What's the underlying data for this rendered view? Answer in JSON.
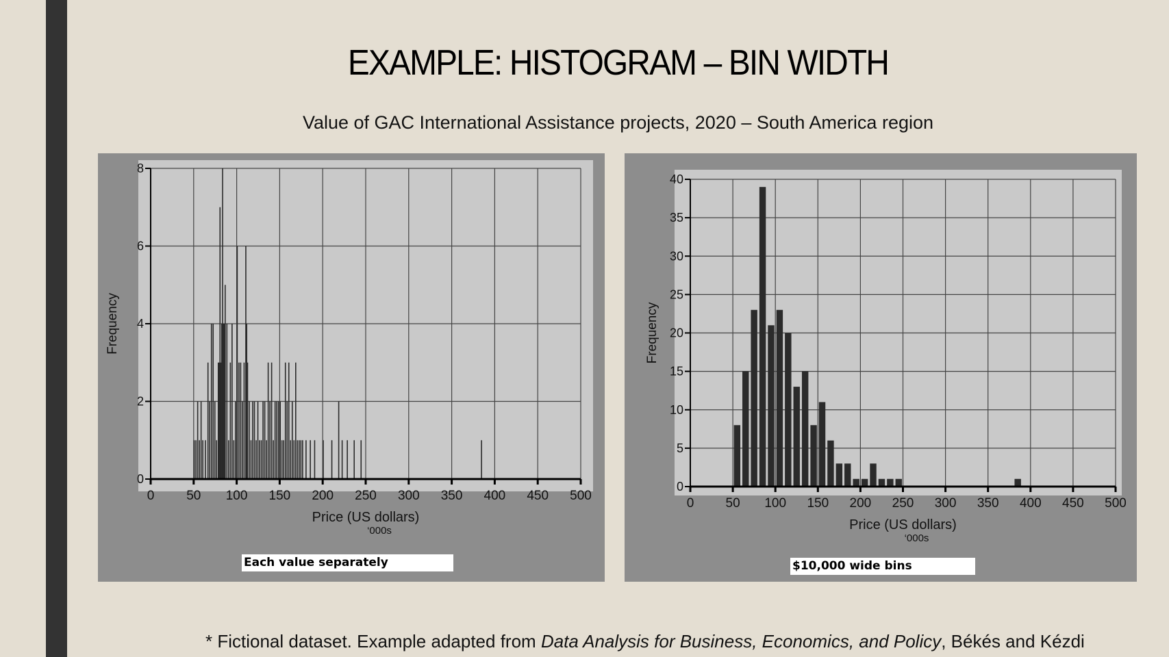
{
  "slide": {
    "title": "EXAMPLE: HISTOGRAM – BIN WIDTH",
    "subtitle": "Value of GAC International Assistance projects, 2020 – South America region",
    "footnote_prefix": "* Fictional dataset. Example adapted from ",
    "footnote_book": "Data Analysis for Business, Economics, and Policy",
    "footnote_suffix": ", Békés and Kézdi",
    "accent_bar_color": "#333333",
    "background_color": "#e4ded2"
  },
  "chart_data": [
    {
      "type": "bar",
      "caption": "Each value separately",
      "xlabel": "Price (US dollars)",
      "xlabel_unit": "‘000s",
      "ylabel": "Frequency",
      "xlim": [
        0,
        500
      ],
      "ylim": [
        0,
        8
      ],
      "xticks": [
        0,
        50,
        100,
        150,
        200,
        250,
        300,
        350,
        400,
        450,
        500
      ],
      "yticks": [
        0,
        2,
        4,
        6,
        8
      ],
      "grid": true,
      "bar_width": 1,
      "x": [
        50,
        52,
        54,
        56,
        58,
        60,
        63,
        66,
        68,
        70,
        72,
        74,
        76,
        78,
        79,
        80,
        81,
        82,
        83,
        84,
        85,
        86,
        88,
        90,
        92,
        94,
        96,
        98,
        100,
        102,
        104,
        106,
        108,
        110,
        111,
        112,
        114,
        116,
        118,
        120,
        122,
        124,
        126,
        128,
        130,
        132,
        134,
        136,
        138,
        140,
        142,
        144,
        146,
        148,
        150,
        152,
        154,
        156,
        158,
        160,
        162,
        164,
        166,
        168,
        170,
        172,
        174,
        176,
        180,
        185,
        190,
        200,
        210,
        218,
        222,
        228,
        236,
        244,
        384
      ],
      "values": [
        1,
        1,
        2,
        1,
        2,
        1,
        1,
        3,
        2,
        4,
        4,
        2,
        1,
        3,
        3,
        7,
        3,
        4,
        8,
        4,
        4,
        5,
        4,
        1,
        3,
        4,
        1,
        2,
        6,
        3,
        3,
        2,
        3,
        6,
        4,
        3,
        2,
        1,
        2,
        2,
        1,
        2,
        1,
        1,
        2,
        2,
        1,
        3,
        2,
        3,
        1,
        2,
        2,
        2,
        2,
        1,
        1,
        3,
        2,
        3,
        1,
        2,
        1,
        3,
        1,
        1,
        1,
        1,
        1,
        1,
        1,
        1,
        1,
        2,
        1,
        1,
        1,
        1,
        1
      ]
    },
    {
      "type": "bar",
      "caption": "$10,000 wide bins",
      "xlabel": "Price (US dollars)",
      "xlabel_unit": "‘000s",
      "ylabel": "Frequency",
      "xlim": [
        0,
        500
      ],
      "ylim": [
        0,
        40
      ],
      "xticks": [
        0,
        50,
        100,
        150,
        200,
        250,
        300,
        350,
        400,
        450,
        500
      ],
      "yticks": [
        0,
        5,
        10,
        15,
        20,
        25,
        30,
        35,
        40
      ],
      "grid": true,
      "bar_width": 10,
      "x": [
        50,
        60,
        70,
        80,
        90,
        100,
        110,
        120,
        130,
        140,
        150,
        160,
        170,
        180,
        190,
        200,
        210,
        220,
        230,
        240,
        380
      ],
      "values": [
        8,
        15,
        23,
        39,
        21,
        23,
        20,
        13,
        15,
        8,
        11,
        6,
        3,
        3,
        1,
        1,
        3,
        1,
        1,
        1,
        1
      ]
    }
  ]
}
